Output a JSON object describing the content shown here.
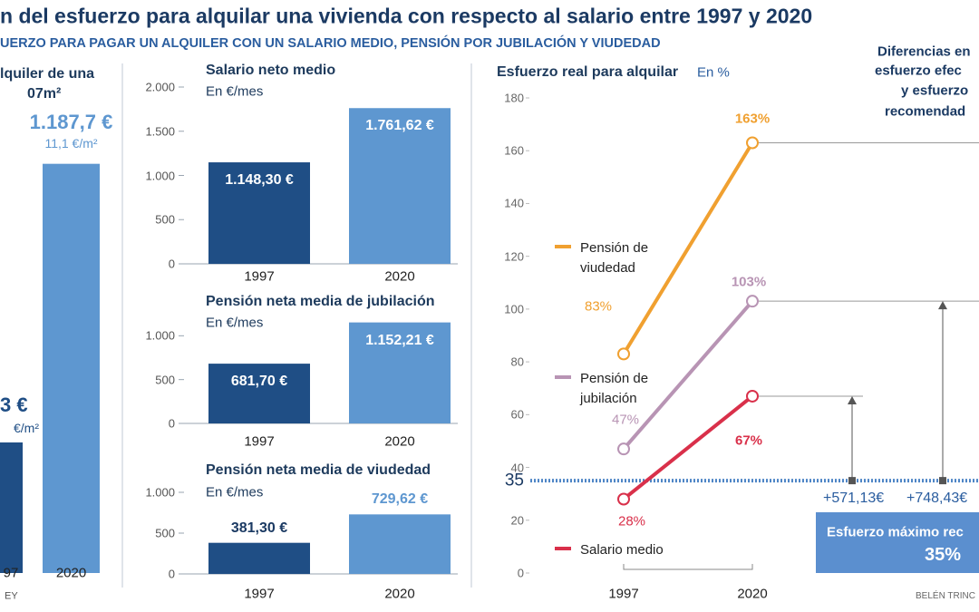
{
  "title": "n del esfuerzo para alquilar una vivienda con respecto al salario entre 1997 y 2020",
  "subtitle": "UERZO PARA PAGAR UN ALQUILER CON UN SALARIO MEDIO, PENSIÓN POR JUBILACIÓN Y VIUDEDAD",
  "chart_data": [
    {
      "type": "bar",
      "title": [
        "lquiler de una",
        "07m²"
      ],
      "categories": [
        "97",
        "2020"
      ],
      "values": [
        379,
        1187.7
      ],
      "value_labels": [
        null,
        "1.187,7 €"
      ],
      "sub_labels": [
        "€/m²",
        "11,1 €/m²"
      ],
      "annotations": [
        "3 €"
      ],
      "colors": [
        "#1f4e85",
        "#5e97d0"
      ],
      "ylim": [
        0,
        1200
      ],
      "source": "EY"
    },
    {
      "type": "bar",
      "title": "Salario neto medio",
      "subtitle": "En €/mes",
      "categories": [
        "1997",
        "2020"
      ],
      "values": [
        1148.3,
        1761.62
      ],
      "value_labels": [
        "1.148,30 €",
        "1.761,62 €"
      ],
      "colors": [
        "#1f4e85",
        "#5e97d0"
      ],
      "ylim": [
        0,
        2000
      ],
      "yticks": [
        0,
        500,
        {
          "value": 1000,
          "label": "1.000"
        },
        {
          "value": 1500,
          "label": "1.500"
        },
        {
          "value": 2000,
          "label": "2.000"
        }
      ],
      "labels_inside": true
    },
    {
      "type": "bar",
      "title": "Pensión neta media de jubilación",
      "subtitle": "En €/mes",
      "categories": [
        "1997",
        "2020"
      ],
      "values": [
        681.7,
        1152.21
      ],
      "value_labels": [
        "681,70 €",
        "1.152,21 €"
      ],
      "colors": [
        "#1f4e85",
        "#5e97d0"
      ],
      "ylim": [
        0,
        1200
      ],
      "yticks": [
        0,
        500,
        {
          "value": 1000,
          "label": "1.000"
        }
      ],
      "labels_inside": true
    },
    {
      "type": "bar",
      "title": "Pensión neta media de viudedad",
      "subtitle": "En €/mes",
      "categories": [
        "1997",
        "2020"
      ],
      "values": [
        381.3,
        729.62
      ],
      "value_labels": [
        "381,30 €",
        "729,62 €"
      ],
      "colors": [
        "#1f4e85",
        "#5e97d0"
      ],
      "ylim": [
        0,
        1200
      ],
      "yticks": [
        0,
        500,
        {
          "value": 1000,
          "label": "1.000"
        }
      ],
      "labels_inside": false
    },
    {
      "type": "line",
      "title": "Esfuerzo real para alquilar",
      "unit": "En %",
      "x": [
        "1997",
        "2020"
      ],
      "series": [
        {
          "name": "Pensión de viudedad",
          "color": "#f0a030",
          "values": [
            83,
            163
          ],
          "value_labels": [
            "83%",
            "163%"
          ]
        },
        {
          "name": "Pensión de jubilación",
          "color": "#b894b4",
          "values": [
            47,
            103
          ],
          "value_labels": [
            "47%",
            "103%"
          ]
        },
        {
          "name": "Salario medio",
          "color": "#d9304a",
          "values": [
            28,
            67
          ],
          "value_labels": [
            "28%",
            "67%"
          ]
        }
      ],
      "ylim": [
        0,
        180
      ],
      "yticks": [
        0,
        20,
        40,
        60,
        80,
        100,
        120,
        140,
        160,
        180
      ],
      "reference_line": 35,
      "reference_color": "#4f86c6"
    }
  ],
  "side_panel": {
    "title_lines": [
      "Diferencias en",
      "esfuerzo efec",
      "y esfuerzo",
      "recomendad"
    ],
    "differences": [
      "+571,13€",
      "+748,43€"
    ],
    "box_label": "Esfuerzo máximo rec",
    "box_value": "35%",
    "credit": "BELÉN TRINC"
  }
}
